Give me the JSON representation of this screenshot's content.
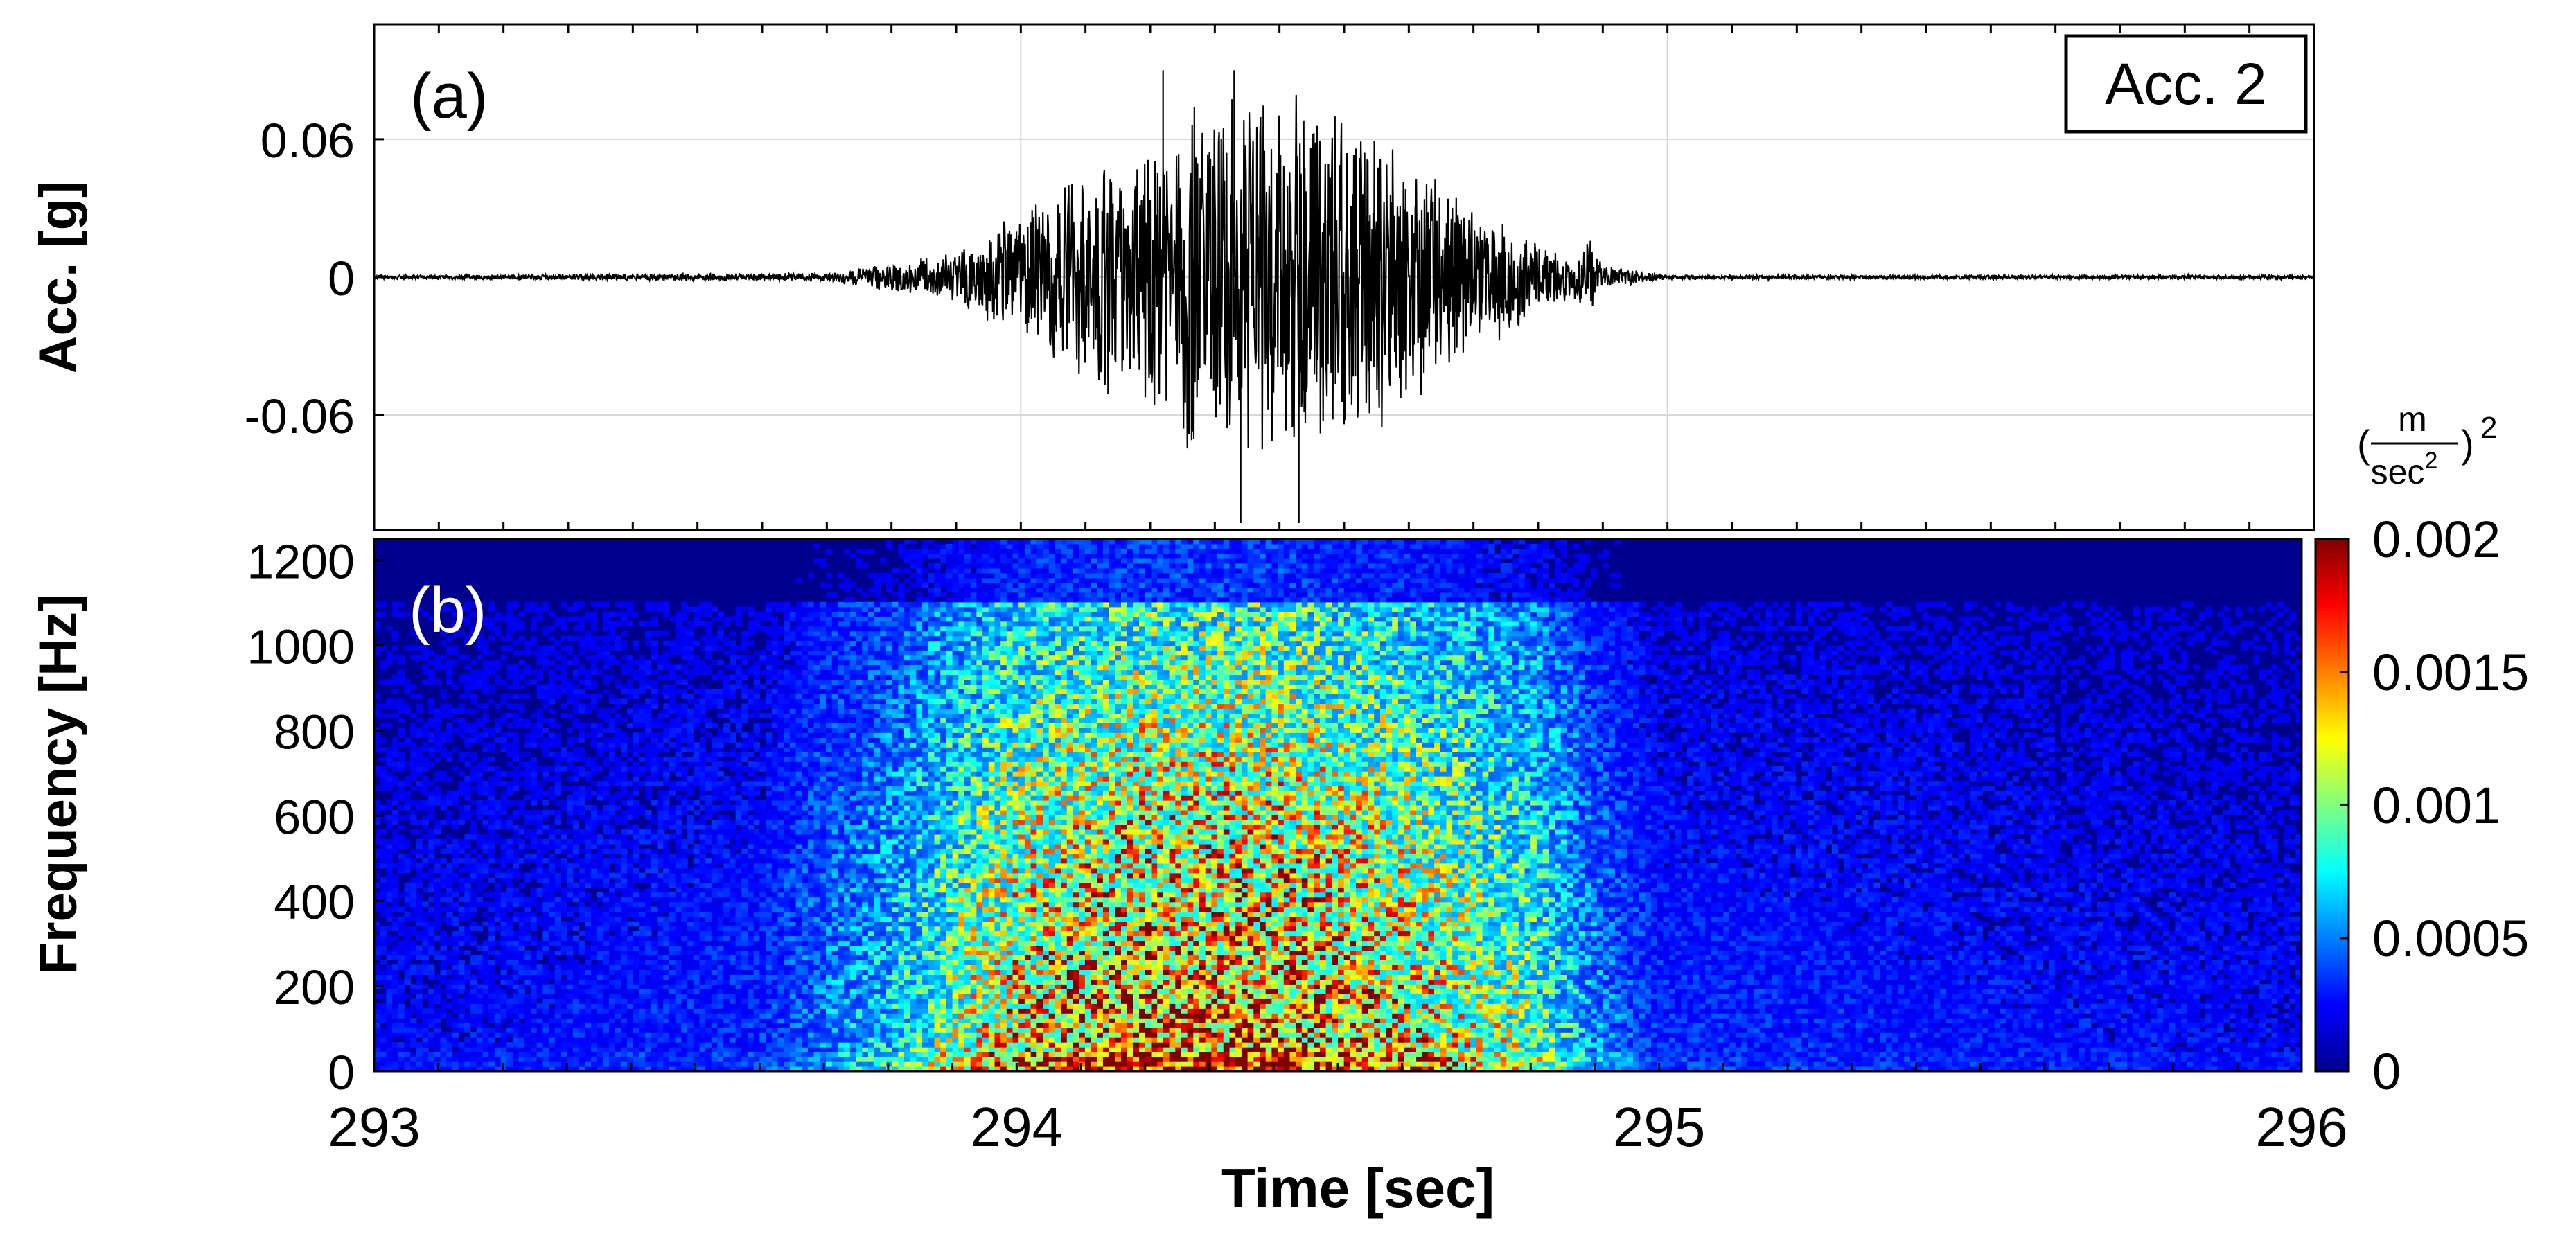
{
  "chart_data": [
    {
      "panel_label": "(a)",
      "type": "line",
      "series": [
        {
          "name": "Acc. 2",
          "envelope": {
            "t": [
              293.0,
              293.7,
              293.9,
              294.1,
              294.3,
              294.5,
              294.7,
              294.85,
              294.88,
              294.9,
              295.0,
              296.0
            ],
            "amp": [
              0.001,
              0.002,
              0.012,
              0.05,
              0.09,
              0.085,
              0.035,
              0.01,
              0.02,
              0.006,
              0.001,
              0.001
            ]
          },
          "peaks": [
            {
              "t": 294.22,
              "value": 0.09
            },
            {
              "t": 294.33,
              "value": 0.09
            },
            {
              "t": 294.34,
              "value": -0.107
            },
            {
              "t": 294.43,
              "value": -0.107
            }
          ]
        }
      ],
      "xlabel": "",
      "ylabel": "Acc. [g]",
      "xlim": [
        293,
        296
      ],
      "ylim": [
        -0.11,
        0.11
      ],
      "yticks": [
        {
          "value": 0.06,
          "label": "0.06"
        },
        {
          "value": 0,
          "label": "0"
        },
        {
          "value": -0.06,
          "label": "-0.06"
        }
      ],
      "grid": true,
      "legend": {
        "text": "Acc. 2",
        "placement": "top-right"
      }
    },
    {
      "panel_label": "(b)",
      "type": "heatmap",
      "xlabel": "Time [sec]",
      "ylabel": "Frequency [Hz]",
      "xlim": [
        293,
        296
      ],
      "ylim": [
        0,
        1250
      ],
      "xticks": [
        {
          "value": 293,
          "label": "293"
        },
        {
          "value": 294,
          "label": "294"
        },
        {
          "value": 295,
          "label": "295"
        },
        {
          "value": 296,
          "label": "296"
        }
      ],
      "yticks": [
        {
          "value": 0,
          "label": "0"
        },
        {
          "value": 200,
          "label": "200"
        },
        {
          "value": 400,
          "label": "400"
        },
        {
          "value": 600,
          "label": "600"
        },
        {
          "value": 800,
          "label": "800"
        },
        {
          "value": 1000,
          "label": "1000"
        },
        {
          "value": 1200,
          "label": "1200"
        }
      ],
      "colormap": "jet",
      "clim": [
        0,
        0.002
      ],
      "colorbar": {
        "unit": {
          "numerator": "m",
          "denominator": "sec",
          "denominator_exp": "2",
          "exp": "2"
        },
        "ticks": [
          {
            "value": 0,
            "label": "0"
          },
          {
            "value": 0.0005,
            "label": "0.0005"
          },
          {
            "value": 0.001,
            "label": "0.001"
          },
          {
            "value": 0.0015,
            "label": "0.0015"
          },
          {
            "value": 0.002,
            "label": "0.002"
          }
        ]
      },
      "energy_profile": {
        "t": [
          293.0,
          293.6,
          293.8,
          294.0,
          294.2,
          294.4,
          294.6,
          294.8,
          294.9,
          295.0,
          296.0
        ],
        "level": [
          0.0002,
          0.0003,
          0.0008,
          0.0018,
          0.0022,
          0.0022,
          0.0018,
          0.0012,
          0.0006,
          0.0003,
          0.0002
        ]
      },
      "peak_frequency_range_hz": [
        0,
        1100
      ]
    }
  ]
}
